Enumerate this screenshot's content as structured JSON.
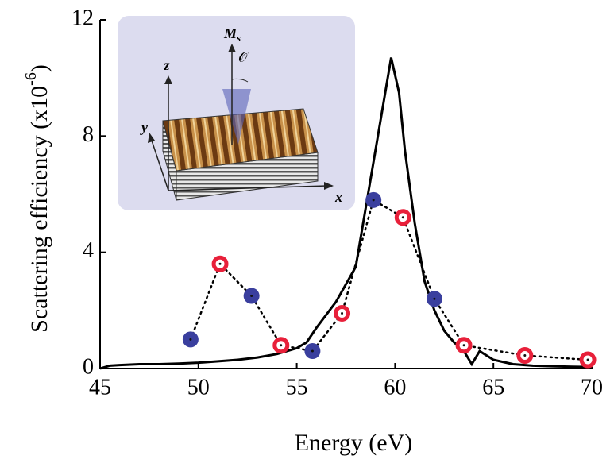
{
  "chart_data": {
    "type": "line",
    "xlabel": "Energy (eV)",
    "ylabel": {
      "text": "Scattering efficiency (x10",
      "superscript": "-6",
      "close": ")"
    },
    "xlim": [
      45,
      70
    ],
    "xticks": [
      45,
      50,
      55,
      60,
      65,
      70
    ],
    "ylim": [
      0,
      12
    ],
    "yticks": [
      0,
      4,
      8,
      12
    ],
    "curve": {
      "color": "#000000",
      "x": [
        45,
        45.5,
        46,
        47,
        48,
        49,
        50,
        51,
        52,
        53,
        54,
        55,
        55.5,
        56,
        57,
        58,
        58.5,
        59,
        59.5,
        59.8,
        60.2,
        60.5,
        61,
        61.5,
        62,
        62.5,
        63,
        63.5,
        63.9,
        64.3,
        65,
        66,
        67,
        68,
        69,
        70
      ],
      "values": [
        0.0,
        0.1,
        0.12,
        0.15,
        0.15,
        0.17,
        0.2,
        0.25,
        0.3,
        0.38,
        0.5,
        0.7,
        0.9,
        1.4,
        2.3,
        3.5,
        5.5,
        7.5,
        9.5,
        10.7,
        9.5,
        7.5,
        5.0,
        3.0,
        2.0,
        1.3,
        0.9,
        0.6,
        0.15,
        0.6,
        0.3,
        0.15,
        0.1,
        0.08,
        0.06,
        0.05
      ]
    },
    "points": {
      "filled_color": "#3a3f9e",
      "ring_color": "#e8203a",
      "x": [
        49.6,
        51.1,
        52.7,
        54.2,
        55.8,
        57.3,
        58.9,
        60.4,
        62.0,
        63.5,
        66.6,
        69.8
      ],
      "values": [
        1.0,
        3.6,
        2.5,
        0.8,
        0.6,
        1.9,
        5.8,
        5.2,
        2.4,
        0.8,
        0.45,
        0.3
      ],
      "styles": [
        "filled",
        "ring",
        "filled",
        "ring",
        "filled",
        "ring",
        "filled",
        "ring",
        "filled",
        "ring",
        "ring",
        "ring"
      ]
    },
    "inset": {
      "moment": "M",
      "moment_sub": "s",
      "angle": "𝒪",
      "z": "z",
      "y": "y",
      "x": "x"
    }
  }
}
